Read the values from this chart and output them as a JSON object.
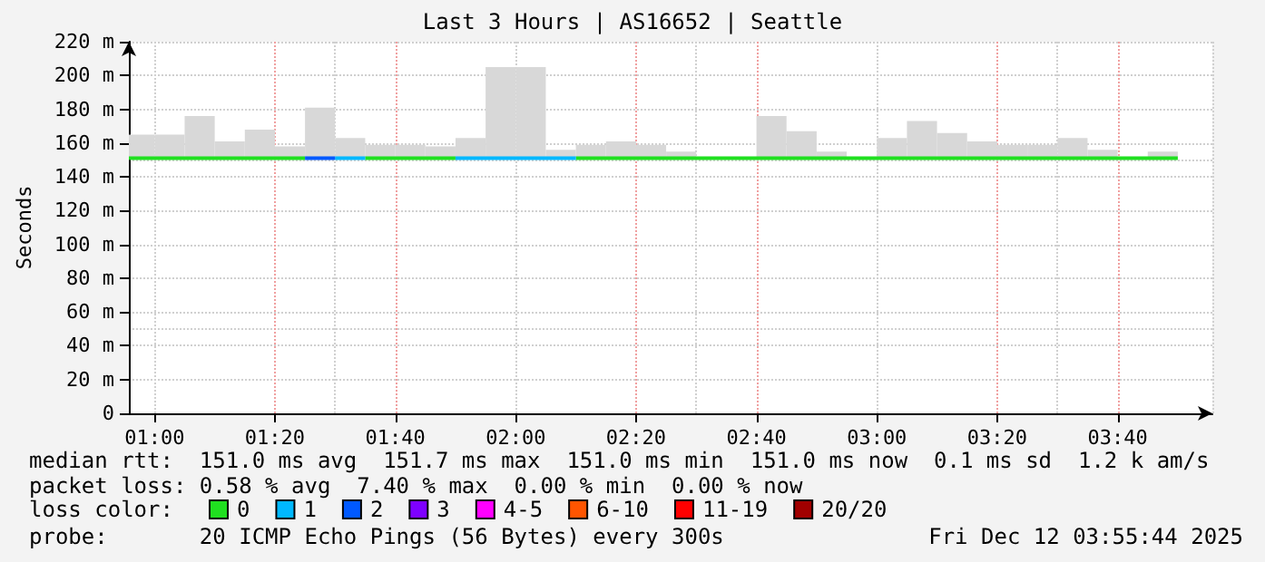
{
  "chart_data": {
    "type": "line",
    "title": "Last 3 Hours | AS16652 | Seattle",
    "ylabel": "Seconds",
    "xlim": [
      0.929,
      3.929
    ],
    "ylim": [
      0,
      220
    ],
    "xticks": [
      {
        "value": 1,
        "label": "01:00"
      },
      {
        "value": 1.3333,
        "label": "01:20"
      },
      {
        "value": 1.6667,
        "label": "01:40"
      },
      {
        "value": 2,
        "label": "02:00"
      },
      {
        "value": 2.3333,
        "label": "02:20"
      },
      {
        "value": 2.6667,
        "label": "02:40"
      },
      {
        "value": 3,
        "label": "03:00"
      },
      {
        "value": 3.3333,
        "label": "03:20"
      },
      {
        "value": 3.6667,
        "label": "03:40"
      }
    ],
    "yticks": [
      0,
      {
        "value": 20,
        "label": "20 m"
      },
      {
        "value": 40,
        "label": "40 m"
      },
      {
        "value": 60,
        "label": "60 m"
      },
      {
        "value": 80,
        "label": "80 m"
      },
      {
        "value": 100,
        "label": "100 m"
      },
      {
        "value": 120,
        "label": "120 m"
      },
      {
        "value": 140,
        "label": "140 m"
      },
      {
        "value": 160,
        "label": "160 m"
      },
      {
        "value": 180,
        "label": "180 m"
      },
      {
        "value": 200,
        "label": "200 m"
      },
      {
        "value": 220,
        "label": "220 m"
      }
    ],
    "grid": true,
    "legend": "bottom",
    "legend_title": "loss color:",
    "marker": "none",
    "series": [
      {
        "type": "bar",
        "color": "#d8d8d8",
        "x": [
          0.9583,
          1.0417,
          1.125,
          1.2083,
          1.2917,
          1.375,
          1.4583,
          1.5417,
          1.625,
          1.7083,
          1.7917,
          1.875,
          1.9583,
          2.0417,
          2.125,
          2.2083,
          2.2917,
          2.375,
          2.4583,
          2.5417,
          2.625,
          2.7083,
          2.7917,
          2.875,
          2.9583,
          3.0417,
          3.125,
          3.2083,
          3.2917,
          3.375,
          3.4583,
          3.5417,
          3.625,
          3.7083,
          3.7917
        ],
        "base": [
          151,
          151,
          151,
          151,
          151,
          151,
          151,
          151,
          151,
          151,
          151,
          151,
          151,
          151,
          151,
          151,
          151,
          151,
          151,
          null,
          null,
          151,
          151,
          151,
          null,
          151,
          151,
          151,
          151,
          151,
          151,
          151,
          151,
          null,
          151
        ],
        "values": [
          14,
          14,
          25,
          10,
          17,
          7,
          30,
          12,
          8,
          8,
          7,
          12,
          54,
          54,
          5,
          8,
          10,
          8,
          4,
          null,
          null,
          25,
          16,
          4,
          null,
          12,
          22,
          15,
          10,
          8,
          8,
          12,
          5,
          null,
          4
        ]
      },
      {
        "name": "0",
        "color": "#20e020",
        "x": [
          0.929,
          1.4167,
          null,
          1.5833,
          1.8333,
          null,
          2.1667,
          3.8333
        ],
        "values": [
          151,
          151,
          null,
          151,
          151,
          null,
          151,
          151
        ]
      },
      {
        "name": "1",
        "color": "#00b8ff",
        "x": [
          1.5,
          1.5833,
          null,
          1.8333,
          2.1667
        ],
        "values": [
          151,
          151,
          null,
          151,
          151
        ]
      },
      {
        "name": "2",
        "color": "#0059ff",
        "x": [
          1.4167,
          1.5
        ],
        "values": [
          151,
          151
        ]
      },
      {
        "name": "3",
        "color": "#7e00ff"
      },
      {
        "name": "4-5",
        "color": "#ff00ff"
      },
      {
        "name": "6-10",
        "color": "#ff5500"
      },
      {
        "name": "11-19",
        "color": "#ff0000"
      },
      {
        "name": "20/20",
        "color": "#a10000"
      }
    ],
    "annotations": [
      "median rtt:  151.0 ms avg  151.7 ms max  151.0 ms min  151.0 ms now  0.1 ms sd  1.2 k am/s",
      "packet loss: 0.58 % avg  7.40 % max  0.00 % min  0.00 % now",
      "probe:       20 ICMP Echo Pings (56 Bytes) every 300s",
      "Fri Dec 12 03:55:44 2025"
    ]
  }
}
